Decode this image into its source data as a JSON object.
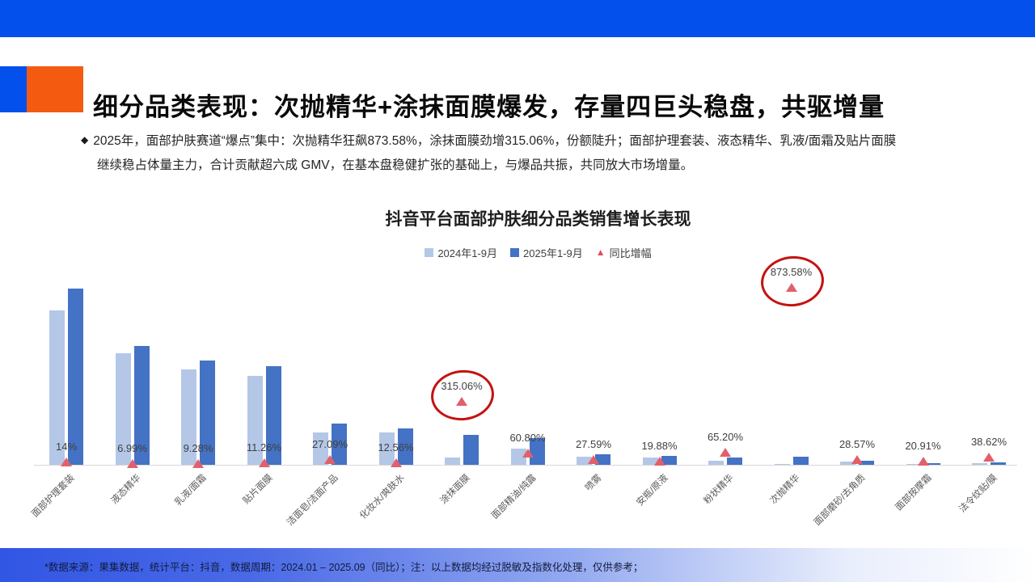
{
  "page": {
    "title": "细分品类表现：次抛精华+涂抹面膜爆发，存量四巨头稳盘，共驱增量",
    "bullet_marker": "◆",
    "bullet_line1": "2025年，面部护肤赛道“爆点”集中：次抛精华狂飙873.58%，涂抹面膜劲增315.06%，份额陡升；面部护理套装、液态精华、乳液/面霜及贴片面膜",
    "bullet_line2": "继续稳占体量主力，合计贡献超六成 GMV，在基本盘稳健扩张的基础上，与爆品共振，共同放大市场增量。",
    "footer": "*数据来源：果集数据，统计平台：抖音，数据周期：2024.01 – 2025.09（同比）；注：以上数据均经过脱敏及指数化处理，仅供参考；"
  },
  "colors": {
    "top_band_blue": "#0450EC",
    "title_square_orange": "#F45B11",
    "bar_2024_light_blue": "#B4C7E7",
    "bar_2025_dark_blue": "#4472C4",
    "growth_triangle_red": "#E0606C",
    "highlight_circle_red": "#C51212",
    "axis_line_gray": "#D9D9D9",
    "footer_gradient_blue": "#3156E4"
  },
  "chart_data": {
    "type": "bar",
    "title": "抖音平台面部护肤细分品类销售增长表现",
    "legend": {
      "s2024": "2024年1-9月",
      "s2025": "2025年1-9月",
      "growth": "同比增幅"
    },
    "legend_position": "top",
    "grid": false,
    "y_axis": "unlabeled (indexed/de-identified GMV, relative units)",
    "categories": [
      "面部护理套装",
      "液态精华",
      "乳液/面霜",
      "贴片面膜",
      "洁面皂/洁面产品",
      "化妆水/爽肤水",
      "涂抹面膜",
      "面部精油/纯露",
      "喷雾",
      "安瓶/原液",
      "粉状精华",
      "次抛精华",
      "面部磨砂/去角质",
      "面部按摩霜",
      "法令纹贴/膜"
    ],
    "series": [
      {
        "name": "2024年1-9月",
        "values": [
          191,
          138,
          118,
          110,
          40,
          40,
          9,
          20.5,
          10,
          9,
          5.5,
          1,
          4,
          1.5,
          2
        ]
      },
      {
        "name": "2025年1-9月",
        "values": [
          218,
          147,
          129,
          122,
          51,
          45,
          37,
          33,
          13,
          11,
          9,
          9.7,
          5,
          1.8,
          2.8
        ]
      }
    ],
    "growth": {
      "name": "同比增幅",
      "values": [
        14,
        6.99,
        9.28,
        11.26,
        27.09,
        12.56,
        315.06,
        60.8,
        27.59,
        19.88,
        65.2,
        873.58,
        28.57,
        20.91,
        38.62
      ],
      "labels": [
        "14%",
        "6.99%",
        "9.28%",
        "11.26%",
        "27.09%",
        "12.56%",
        "315.06%",
        "60.80%",
        "27.59%",
        "19.88%",
        "65.20%",
        "873.58%",
        "28.57%",
        "20.91%",
        "38.62%"
      ]
    },
    "circled_categories": [
      "涂抹面膜",
      "次抛精华"
    ],
    "circled_indexes": [
      6,
      11
    ]
  }
}
